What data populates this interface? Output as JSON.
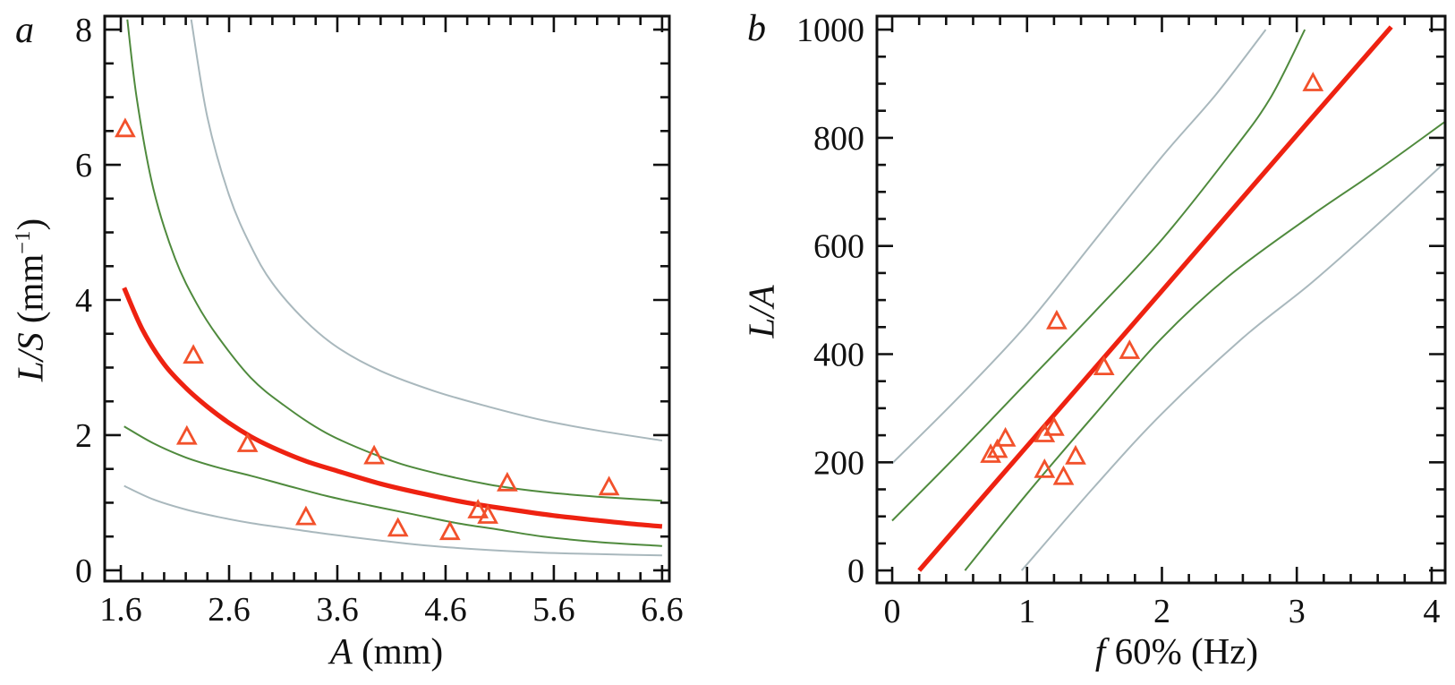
{
  "figure": {
    "background": "#ffffff"
  },
  "colors": {
    "fit_line": "#ee2211",
    "marker": "#f2512b",
    "conf_band": "#4f8a3d",
    "pred_band": "#a9b8bd",
    "axis": "#111111"
  },
  "chart_data": [
    {
      "id": "a",
      "type": "scatter",
      "panel_label": "a",
      "xlabel_parts": [
        {
          "text": "A",
          "italic": true
        },
        {
          "text": " (mm)"
        }
      ],
      "ylabel_parts": [
        {
          "text": "L/S",
          "italic": true
        },
        {
          "text": " (mm"
        },
        {
          "text": "−1",
          "sup": true
        },
        {
          "text": ")"
        }
      ],
      "xlabel_plain": "A (mm)",
      "ylabel_plain": "L/S (mm⁻¹)",
      "xlim": [
        1.451,
        6.667
      ],
      "ylim": [
        -0.16,
        8.2
      ],
      "xticks": {
        "values": [
          1.6,
          2.6,
          3.6,
          4.6,
          5.6,
          6.6
        ],
        "labels": [
          "1.6",
          "2.6",
          "3.6",
          "4.6",
          "5.6",
          "6.6"
        ],
        "minor_step": 0.2,
        "minor_range": [
          1.6,
          6.6
        ]
      },
      "yticks": {
        "values": [
          0,
          2,
          4,
          6,
          8
        ],
        "labels": [
          "0",
          "2",
          "4",
          "6",
          "8"
        ],
        "minor_step": 0.5,
        "minor_range": [
          0,
          8
        ]
      },
      "points": [
        [
          1.64,
          6.52
        ],
        [
          2.21,
          1.97
        ],
        [
          2.27,
          3.17
        ],
        [
          2.77,
          1.86
        ],
        [
          3.31,
          0.78
        ],
        [
          3.94,
          1.68
        ],
        [
          4.16,
          0.61
        ],
        [
          4.64,
          0.56
        ],
        [
          4.9,
          0.88
        ],
        [
          4.99,
          0.8
        ],
        [
          5.17,
          1.28
        ],
        [
          6.11,
          1.22
        ]
      ],
      "curves": [
        {
          "name": "prediction-band-upper",
          "color_key": "pred_band",
          "width": 2,
          "points": [
            [
              2.25,
              8.15
            ],
            [
              2.4,
              6.7
            ],
            [
              2.6,
              5.55
            ],
            [
              2.8,
              4.8
            ],
            [
              3.0,
              4.25
            ],
            [
              3.3,
              3.7
            ],
            [
              3.6,
              3.3
            ],
            [
              4.0,
              2.95
            ],
            [
              4.5,
              2.65
            ],
            [
              5.0,
              2.42
            ],
            [
              5.5,
              2.22
            ],
            [
              6.0,
              2.07
            ],
            [
              6.6,
              1.92
            ]
          ]
        },
        {
          "name": "prediction-band-lower",
          "color_key": "pred_band",
          "width": 2,
          "points": [
            [
              1.63,
              1.25
            ],
            [
              1.9,
              1.05
            ],
            [
              2.2,
              0.9
            ],
            [
              2.5,
              0.79
            ],
            [
              2.8,
              0.7
            ],
            [
              3.1,
              0.63
            ],
            [
              3.5,
              0.54
            ],
            [
              4.0,
              0.44
            ],
            [
              4.4,
              0.37
            ],
            [
              5.0,
              0.3
            ],
            [
              5.5,
              0.26
            ],
            [
              6.0,
              0.24
            ],
            [
              6.6,
              0.22
            ]
          ]
        },
        {
          "name": "confidence-band-upper",
          "color_key": "conf_band",
          "width": 2,
          "points": [
            [
              1.66,
              8.15
            ],
            [
              1.75,
              6.95
            ],
            [
              1.9,
              5.65
            ],
            [
              2.1,
              4.62
            ],
            [
              2.3,
              3.95
            ],
            [
              2.5,
              3.45
            ],
            [
              2.8,
              2.85
            ],
            [
              3.1,
              2.45
            ],
            [
              3.5,
              2.03
            ],
            [
              4.0,
              1.68
            ],
            [
              4.4,
              1.48
            ],
            [
              5.0,
              1.27
            ],
            [
              5.5,
              1.16
            ],
            [
              6.0,
              1.09
            ],
            [
              6.6,
              1.03
            ]
          ]
        },
        {
          "name": "confidence-band-lower",
          "color_key": "conf_band",
          "width": 2,
          "points": [
            [
              1.63,
              2.13
            ],
            [
              1.9,
              1.88
            ],
            [
              2.2,
              1.67
            ],
            [
              2.5,
              1.52
            ],
            [
              2.8,
              1.4
            ],
            [
              3.1,
              1.27
            ],
            [
              3.5,
              1.1
            ],
            [
              3.9,
              0.96
            ],
            [
              4.3,
              0.83
            ],
            [
              4.7,
              0.7
            ],
            [
              5.1,
              0.6
            ],
            [
              5.5,
              0.5
            ],
            [
              6.0,
              0.42
            ],
            [
              6.6,
              0.36
            ]
          ]
        },
        {
          "name": "fit-line",
          "color_key": "fit_line",
          "width": 5.2,
          "points": [
            [
              1.63,
              4.18
            ],
            [
              1.8,
              3.56
            ],
            [
              2.0,
              3.05
            ],
            [
              2.2,
              2.7
            ],
            [
              2.4,
              2.42
            ],
            [
              2.6,
              2.18
            ],
            [
              2.8,
              1.98
            ],
            [
              3.0,
              1.82
            ],
            [
              3.3,
              1.62
            ],
            [
              3.6,
              1.47
            ],
            [
              4.0,
              1.28
            ],
            [
              4.4,
              1.13
            ],
            [
              4.8,
              1.0
            ],
            [
              5.2,
              0.9
            ],
            [
              5.6,
              0.81
            ],
            [
              6.0,
              0.74
            ],
            [
              6.3,
              0.69
            ],
            [
              6.6,
              0.65
            ]
          ]
        }
      ]
    },
    {
      "id": "b",
      "type": "scatter",
      "panel_label": "b",
      "xlabel_parts": [
        {
          "text": "f",
          "italic": true
        },
        {
          "text": " 60% (Hz)"
        }
      ],
      "ylabel_parts": [
        {
          "text": "L/A",
          "italic": true
        }
      ],
      "xlabel_plain": "f 60% (Hz)",
      "ylabel_plain": "L/A",
      "xlim": [
        -0.113,
        4.1
      ],
      "ylim": [
        -23,
        1025
      ],
      "xticks": {
        "values": [
          0,
          1,
          2,
          3,
          4
        ],
        "labels": [
          "0",
          "1",
          "2",
          "3",
          "4"
        ],
        "minor_step": 0.2,
        "minor_range": [
          0,
          4
        ]
      },
      "yticks": {
        "values": [
          0,
          200,
          400,
          600,
          800,
          1000
        ],
        "labels": [
          "0",
          "200",
          "400",
          "600",
          "800",
          "1000"
        ],
        "minor_step": 50,
        "minor_range": [
          0,
          1000
        ]
      },
      "points": [
        [
          0.73,
          213
        ],
        [
          0.78,
          222
        ],
        [
          0.84,
          243
        ],
        [
          1.13,
          185
        ],
        [
          1.13,
          251
        ],
        [
          1.2,
          263
        ],
        [
          1.22,
          460
        ],
        [
          1.27,
          172
        ],
        [
          1.36,
          210
        ],
        [
          1.57,
          375
        ],
        [
          1.76,
          405
        ],
        [
          3.12,
          900
        ]
      ],
      "curves": [
        {
          "name": "prediction-band-upper",
          "color_key": "pred_band",
          "width": 2,
          "points": [
            [
              0,
              198
            ],
            [
              0.5,
              322
            ],
            [
              1.0,
              455
            ],
            [
              1.5,
              610
            ],
            [
              2.0,
              765
            ],
            [
              2.4,
              880
            ],
            [
              2.77,
              1000
            ]
          ]
        },
        {
          "name": "prediction-band-lower",
          "color_key": "pred_band",
          "width": 2,
          "points": [
            [
              0.96,
              0
            ],
            [
              1.5,
              155
            ],
            [
              2.0,
              290
            ],
            [
              2.6,
              430
            ],
            [
              3.1,
              530
            ],
            [
              3.6,
              640
            ],
            [
              4.1,
              755
            ]
          ]
        },
        {
          "name": "confidence-band-upper",
          "color_key": "conf_band",
          "width": 2,
          "points": [
            [
              0,
              92
            ],
            [
              0.5,
              218
            ],
            [
              1.0,
              348
            ],
            [
              1.5,
              478
            ],
            [
              2.0,
              612
            ],
            [
              2.5,
              768
            ],
            [
              2.8,
              872
            ],
            [
              3.06,
              1000
            ]
          ]
        },
        {
          "name": "confidence-band-lower",
          "color_key": "conf_band",
          "width": 2,
          "points": [
            [
              0.54,
              0
            ],
            [
              1.0,
              142
            ],
            [
              1.5,
              288
            ],
            [
              2.0,
              430
            ],
            [
              2.5,
              545
            ],
            [
              3.1,
              655
            ],
            [
              3.6,
              740
            ],
            [
              4.1,
              830
            ]
          ]
        },
        {
          "name": "fit-line",
          "color_key": "fit_line",
          "width": 5.2,
          "points": [
            [
              0.2,
              0
            ],
            [
              1.0,
              230
            ],
            [
              2.0,
              517
            ],
            [
              3.0,
              805
            ],
            [
              3.7,
              1005
            ]
          ]
        }
      ]
    }
  ]
}
